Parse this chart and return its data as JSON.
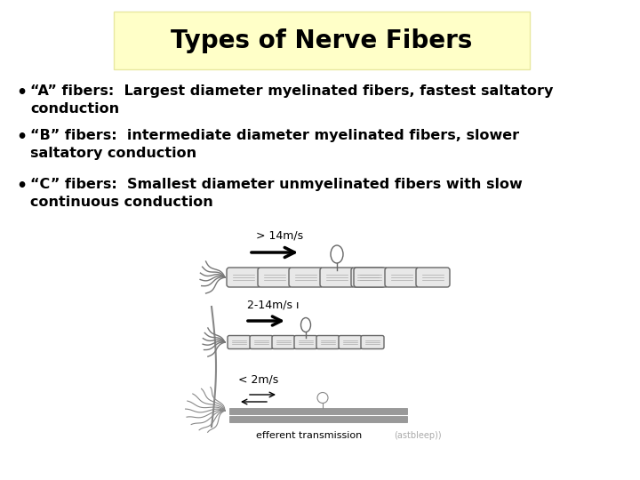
{
  "title": "Types of Nerve Fibers",
  "title_fontsize": 20,
  "title_fontweight": "bold",
  "title_box_facecolor": "#ffffc8",
  "title_box_edgecolor": "#e8e8a0",
  "bullet_points": [
    {
      "line1": "“A” fibers:  Largest diameter myelinated fibers, fastest saltatory",
      "line2": "conduction"
    },
    {
      "line1": "“B” fibers:  intermediate diameter myelinated fibers, slower",
      "line2": "saltatory conduction"
    },
    {
      "line1": "“C” fibers:  Smallest diameter unmyelinated fibers with slow",
      "line2": "continuous conduction"
    }
  ],
  "text_fontsize": 11.5,
  "text_fontweight": "bold",
  "background_color": "#ffffff",
  "text_color": "#000000",
  "label_A": "> 14m/s",
  "label_B": "2-14m/s ı",
  "label_C": "< 2m/s",
  "efferent_label": "efferent transmission",
  "credit_label": "(astbleep))"
}
